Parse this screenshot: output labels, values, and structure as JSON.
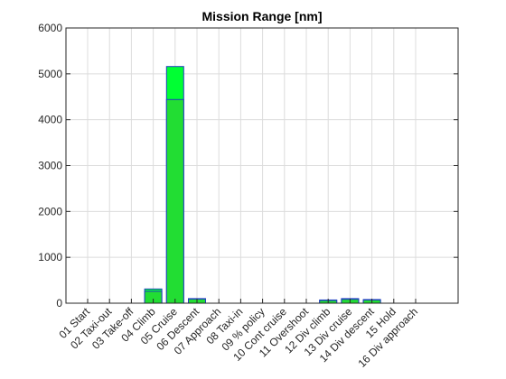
{
  "chart_data": {
    "type": "bar",
    "title": "Mission Range [nm]",
    "xlabel": "",
    "ylabel": "",
    "ylim": [
      0,
      6000
    ],
    "yticks": [
      0,
      1000,
      2000,
      3000,
      4000,
      5000,
      6000
    ],
    "grid": true,
    "categories": [
      "01 Start",
      "02 Taxi-out",
      "03 Take-off",
      "04 Climb",
      "05 Cruise",
      "06 Descent",
      "07 Approach",
      "08 Taxi-in",
      "09 % policy",
      "10 Cont cruise",
      "11 Overshoot",
      "12 Div climb",
      "13 Div cruise",
      "14 Div descent",
      "15 Hold",
      "16 Div approach"
    ],
    "series": [
      {
        "values": [
          0,
          0,
          0,
          310,
          5160,
          100,
          0,
          0,
          0,
          0,
          0,
          70,
          100,
          80,
          0,
          0
        ],
        "color": "#00ff33"
      },
      {
        "values": [
          0,
          0,
          0,
          260,
          4440,
          90,
          0,
          0,
          0,
          0,
          0,
          60,
          85,
          70,
          0,
          0
        ],
        "color": "#22dd33"
      }
    ],
    "bar_edge_color": "#1f3fbf",
    "grid_color": "#dcdcdc"
  }
}
